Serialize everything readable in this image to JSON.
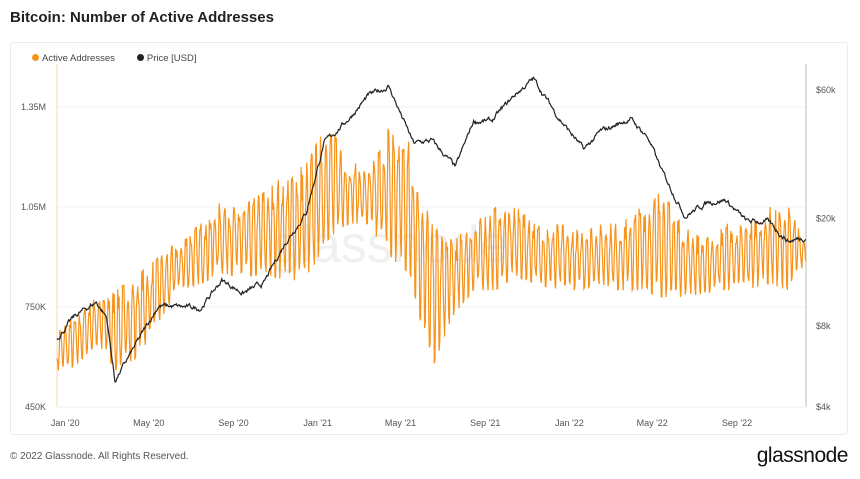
{
  "title": "Bitcoin: Number of Active Addresses",
  "footer": "© 2022 Glassnode. All Rights Reserved.",
  "brand": "glassnode",
  "watermark": "glassnode",
  "colors": {
    "active_addresses": "#f7931a",
    "price": "#222222"
  },
  "chart_data": {
    "type": "line",
    "title": "Bitcoin: Number of Active Addresses",
    "legend_placement": "top-left",
    "grid": true,
    "x_range": [
      "2019-12-20",
      "2022-12-10"
    ],
    "x_ticks": [
      "Jan '20",
      "May '20",
      "Sep '20",
      "Jan '21",
      "May '21",
      "Sep '21",
      "Jan '22",
      "May '22",
      "Sep '22"
    ],
    "x_tick_dates": [
      "2020-01-01",
      "2020-05-01",
      "2020-09-01",
      "2021-01-01",
      "2021-05-01",
      "2021-09-01",
      "2022-01-01",
      "2022-05-01",
      "2022-09-01"
    ],
    "y_left": {
      "scale": "linear",
      "range": [
        450000,
        1500000
      ],
      "ticks": [
        450000,
        750000,
        1050000,
        1350000
      ],
      "tick_labels": [
        "450K",
        "750K",
        "1.05M",
        "1.35M"
      ]
    },
    "y_right": {
      "scale": "log",
      "range": [
        4000,
        75000
      ],
      "ticks": [
        4000,
        8000,
        20000,
        60000
      ],
      "tick_labels": [
        "$4k",
        "$8k",
        "$20k",
        "$60k"
      ]
    },
    "series": [
      {
        "name": "Active Addresses",
        "axis": "left",
        "note_monthly": "weekly-oscillating series; monthly high/low",
        "dates": [
          "2019-12-25",
          "2020-01-15",
          "2020-02-15",
          "2020-03-15",
          "2020-04-15",
          "2020-05-15",
          "2020-06-15",
          "2020-07-15",
          "2020-08-15",
          "2020-09-15",
          "2020-10-15",
          "2020-11-15",
          "2020-12-15",
          "2021-01-15",
          "2021-02-15",
          "2021-03-15",
          "2021-04-15",
          "2021-05-15",
          "2021-06-15",
          "2021-07-15",
          "2021-08-15",
          "2021-09-15",
          "2021-10-15",
          "2021-11-15",
          "2021-12-15",
          "2022-01-15",
          "2022-02-15",
          "2022-03-15",
          "2022-04-15",
          "2022-05-15",
          "2022-06-15",
          "2022-07-15",
          "2022-08-15",
          "2022-09-15",
          "2022-10-15",
          "2022-11-15",
          "2022-12-08"
        ],
        "high": [
          690000,
          720000,
          780000,
          800000,
          850000,
          900000,
          950000,
          1000000,
          1070000,
          1050000,
          1100000,
          1150000,
          1180000,
          1300000,
          1200000,
          1150000,
          1300000,
          1250000,
          1000000,
          950000,
          1000000,
          1050000,
          1050000,
          1000000,
          1000000,
          980000,
          1000000,
          1000000,
          1050000,
          1100000,
          1000000,
          950000,
          1000000,
          1000000,
          1050000,
          1050000,
          950000
        ],
        "low": [
          560000,
          570000,
          640000,
          560000,
          600000,
          700000,
          800000,
          820000,
          850000,
          840000,
          850000,
          830000,
          830000,
          950000,
          1000000,
          1000000,
          900000,
          850000,
          560000,
          720000,
          800000,
          800000,
          840000,
          820000,
          800000,
          800000,
          820000,
          800000,
          800000,
          780000,
          780000,
          790000,
          800000,
          800000,
          820000,
          800000,
          880000
        ]
      },
      {
        "name": "Price [USD]",
        "axis": "right",
        "dates": [
          "2019-12-20",
          "2020-01-15",
          "2020-02-15",
          "2020-03-01",
          "2020-03-13",
          "2020-04-15",
          "2020-05-15",
          "2020-06-15",
          "2020-07-15",
          "2020-08-15",
          "2020-09-15",
          "2020-10-15",
          "2020-11-15",
          "2020-12-15",
          "2021-01-10",
          "2021-02-15",
          "2021-03-15",
          "2021-04-14",
          "2021-05-20",
          "2021-06-15",
          "2021-07-20",
          "2021-08-15",
          "2021-09-10",
          "2021-10-15",
          "2021-11-10",
          "2021-12-15",
          "2022-01-22",
          "2022-02-15",
          "2022-03-30",
          "2022-04-25",
          "2022-05-15",
          "2022-06-18",
          "2022-07-20",
          "2022-08-15",
          "2022-09-15",
          "2022-10-15",
          "2022-11-15",
          "2022-12-10"
        ],
        "values": [
          7200,
          8700,
          9800,
          8600,
          5000,
          7000,
          9500,
          9400,
          9300,
          11800,
          10600,
          11500,
          16300,
          21000,
          38000,
          47000,
          57000,
          62000,
          38000,
          39000,
          31000,
          46000,
          46000,
          58000,
          66000,
          48000,
          36000,
          42000,
          47000,
          40000,
          30000,
          20500,
          23000,
          23500,
          19500,
          19500,
          16500,
          17100
        ]
      }
    ]
  }
}
